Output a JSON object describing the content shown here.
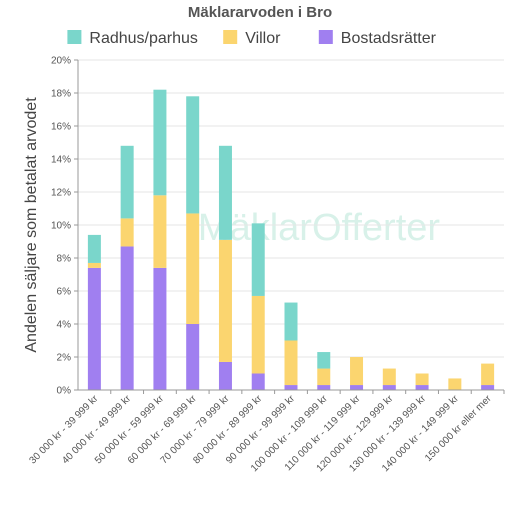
{
  "chart_data": {
    "type": "bar",
    "stacked": true,
    "title": "Mäklararvoden i Bro",
    "ylabel": "Andelen säljare som betalat arvodet",
    "xlabel": "",
    "ylim": [
      0,
      20
    ],
    "yticks": [
      "0%",
      "2%",
      "4%",
      "6%",
      "8%",
      "10%",
      "12%",
      "14%",
      "16%",
      "18%",
      "20%"
    ],
    "grid": true,
    "legend_position": "top",
    "watermark": "MäklarOfferter",
    "categories": [
      "30 000 kr - 39 999 kr",
      "40 000 kr - 49 999 kr",
      "50 000 kr - 59 999 kr",
      "60 000 kr - 69 999 kr",
      "70 000 kr - 79 999 kr",
      "80 000 kr - 89 999 kr",
      "90 000 kr - 99 999 kr",
      "100 000 kr - 109 999 kr",
      "110 000 kr - 119 999 kr",
      "120 000 kr - 129 999 kr",
      "130 000 kr - 139 999 kr",
      "140 000 kr - 149 999 kr",
      "150 000 kr eller mer"
    ],
    "series": [
      {
        "name": "Bostadsrätter",
        "color": "#a07ff0",
        "values": [
          7.4,
          8.7,
          7.4,
          4.0,
          1.7,
          1.0,
          0.3,
          0.3,
          0.3,
          0.3,
          0.3,
          0.0,
          0.3
        ]
      },
      {
        "name": "Villor",
        "color": "#fbd56f",
        "values": [
          0.3,
          1.7,
          4.4,
          6.7,
          7.4,
          4.7,
          2.7,
          1.0,
          1.7,
          1.0,
          0.7,
          0.7,
          1.3
        ]
      },
      {
        "name": "Radhus/parhus",
        "color": "#7ad6cb",
        "values": [
          1.7,
          4.4,
          6.4,
          7.1,
          5.7,
          4.4,
          2.3,
          1.0,
          0.0,
          0.0,
          0.0,
          0.0,
          0.0
        ]
      }
    ],
    "legend_order": [
      "Radhus/parhus",
      "Villor",
      "Bostadsrätter"
    ]
  }
}
